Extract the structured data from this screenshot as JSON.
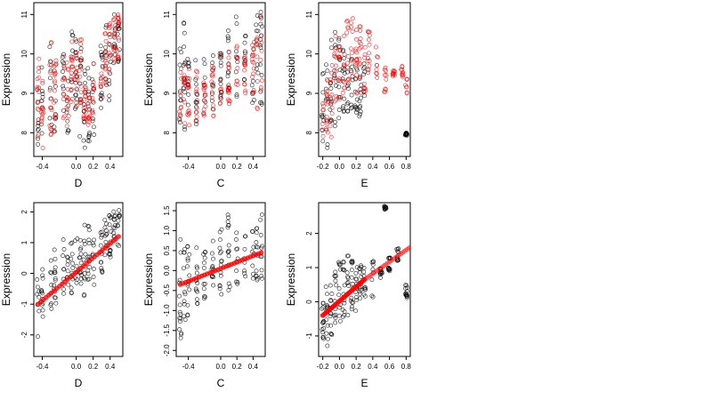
{
  "chart_data": [
    {
      "type": "scatter",
      "title": "",
      "xlabel": "D",
      "ylabel": "Expression",
      "xlim": [
        -0.5,
        0.55
      ],
      "ylim": [
        7.4,
        11.3
      ],
      "xticks": [
        -0.4,
        0.0,
        0.2,
        0.4
      ],
      "xtick_labels": [
        "-0.4",
        "0.0",
        "0.2",
        "0.4"
      ],
      "yticks": [
        8,
        9,
        10,
        11
      ],
      "ytick_labels": [
        "8",
        "9",
        "10",
        "11"
      ],
      "series": [
        {
          "color": "#000000",
          "marker": "open-circle",
          "x_columns": [
            -0.45,
            -0.4,
            -0.3,
            -0.25,
            -0.15,
            -0.1,
            -0.05,
            0.0,
            0.05,
            0.1,
            0.15,
            0.2,
            0.3,
            0.35,
            0.4,
            0.45,
            0.5
          ],
          "y_bands": [
            [
              7.6,
              9.3
            ],
            [
              7.8,
              10.0
            ],
            [
              7.9,
              10.2
            ],
            [
              8.0,
              10.0
            ],
            [
              8.3,
              10.2
            ],
            [
              7.7,
              10.4
            ],
            [
              8.2,
              10.8
            ],
            [
              8.5,
              10.5
            ],
            [
              7.8,
              10.3
            ],
            [
              7.5,
              9.6
            ],
            [
              7.6,
              9.8
            ],
            [
              7.7,
              9.5
            ],
            [
              8.6,
              10.2
            ],
            [
              9.0,
              10.8
            ],
            [
              8.8,
              10.6
            ],
            [
              9.6,
              11.1
            ],
            [
              9.8,
              11.2
            ]
          ]
        },
        {
          "color": "#ff0000",
          "marker": "open-circle",
          "x_columns": [
            -0.45,
            -0.4,
            -0.3,
            -0.25,
            -0.15,
            -0.1,
            -0.05,
            0.0,
            0.05,
            0.1,
            0.15,
            0.2,
            0.3,
            0.35,
            0.4,
            0.45,
            0.5
          ],
          "y_bands": [
            [
              7.6,
              9.9
            ],
            [
              7.5,
              9.4
            ],
            [
              7.9,
              10.3
            ],
            [
              8.0,
              9.9
            ],
            [
              8.3,
              10.1
            ],
            [
              8.1,
              9.8
            ],
            [
              8.5,
              10.5
            ],
            [
              8.6,
              10.2
            ],
            [
              8.7,
              10.4
            ],
            [
              8.3,
              9.2
            ],
            [
              8.2,
              9.0
            ],
            [
              8.3,
              9.8
            ],
            [
              8.5,
              9.9
            ],
            [
              9.2,
              10.6
            ],
            [
              9.2,
              10.9
            ],
            [
              9.8,
              11.0
            ],
            [
              9.6,
              11.1
            ]
          ]
        }
      ]
    },
    {
      "type": "scatter",
      "title": "",
      "xlabel": "C",
      "ylabel": "Expression",
      "xlim": [
        -0.55,
        0.55
      ],
      "ylim": [
        7.4,
        11.3
      ],
      "xticks": [
        -0.4,
        0.0,
        0.2,
        0.4
      ],
      "xtick_labels": [
        "-0.4",
        "0.0",
        "0.2",
        "0.4"
      ],
      "yticks": [
        8,
        9,
        10,
        11
      ],
      "ytick_labels": [
        "8",
        "9",
        "10",
        "11"
      ],
      "series": [
        {
          "color": "#000000",
          "marker": "open-circle",
          "x_columns": [
            -0.5,
            -0.45,
            -0.4,
            -0.3,
            -0.2,
            -0.1,
            0.0,
            0.1,
            0.2,
            0.3,
            0.4,
            0.45,
            0.5
          ],
          "y_bands": [
            [
              7.6,
              10.4
            ],
            [
              7.8,
              10.8
            ],
            [
              8.0,
              10.3
            ],
            [
              8.2,
              10.0
            ],
            [
              8.3,
              9.9
            ],
            [
              8.6,
              10.2
            ],
            [
              8.8,
              10.3
            ],
            [
              8.7,
              10.7
            ],
            [
              8.8,
              11.0
            ],
            [
              9.0,
              10.6
            ],
            [
              8.6,
              10.9
            ],
            [
              8.9,
              11.0
            ],
            [
              8.7,
              11.1
            ]
          ]
        },
        {
          "color": "#ff0000",
          "marker": "open-circle",
          "x_columns": [
            -0.5,
            -0.45,
            -0.4,
            -0.3,
            -0.2,
            -0.1,
            0.0,
            0.1,
            0.2,
            0.3,
            0.4,
            0.45,
            0.5
          ],
          "y_bands": [
            [
              8.1,
              9.9
            ],
            [
              8.2,
              10.0
            ],
            [
              8.1,
              9.7
            ],
            [
              8.3,
              9.6
            ],
            [
              8.4,
              9.3
            ],
            [
              8.4,
              9.7
            ],
            [
              8.7,
              10.0
            ],
            [
              8.7,
              10.1
            ],
            [
              9.1,
              10.2
            ],
            [
              9.0,
              10.0
            ],
            [
              8.8,
              10.4
            ],
            [
              8.6,
              10.5
            ],
            [
              9.0,
              11.0
            ]
          ]
        }
      ]
    },
    {
      "type": "scatter",
      "title": "",
      "xlabel": "E",
      "ylabel": "Expression",
      "xlim": [
        -0.25,
        0.85
      ],
      "ylim": [
        7.4,
        11.3
      ],
      "xticks": [
        -0.2,
        0.0,
        0.2,
        0.4,
        0.6,
        0.8
      ],
      "xtick_labels": [
        "-0.2",
        "0.0",
        "0.2",
        "0.4",
        "0.6",
        "0.8"
      ],
      "yticks": [
        8,
        9,
        10,
        11
      ],
      "ytick_labels": [
        "8",
        "9",
        "10",
        "11"
      ],
      "series": [
        {
          "color": "#000000",
          "marker": "open-circle",
          "x_columns": [
            -0.2,
            -0.15,
            -0.1,
            -0.05,
            0.0,
            0.05,
            0.1,
            0.15,
            0.2,
            0.25,
            0.3,
            0.8
          ],
          "y_bands": [
            [
              7.7,
              9.6
            ],
            [
              7.6,
              10.0
            ],
            [
              7.8,
              10.5
            ],
            [
              8.1,
              10.7
            ],
            [
              8.3,
              10.5
            ],
            [
              8.5,
              10.3
            ],
            [
              8.4,
              10.2
            ],
            [
              8.2,
              10.0
            ],
            [
              8.1,
              9.8
            ],
            [
              8.3,
              9.6
            ],
            [
              8.6,
              9.8
            ],
            [
              7.9,
              8.0
            ]
          ]
        },
        {
          "color": "#ff0000",
          "marker": "open-circle",
          "x_columns": [
            -0.2,
            -0.15,
            -0.1,
            -0.05,
            0.0,
            0.05,
            0.1,
            0.15,
            0.2,
            0.25,
            0.3,
            0.35,
            0.45,
            0.55,
            0.65,
            0.75,
            0.8
          ],
          "y_bands": [
            [
              7.9,
              9.2
            ],
            [
              8.0,
              9.6
            ],
            [
              7.7,
              9.8
            ],
            [
              8.5,
              10.6
            ],
            [
              8.8,
              10.4
            ],
            [
              9.0,
              10.6
            ],
            [
              9.3,
              10.9
            ],
            [
              9.4,
              11.0
            ],
            [
              8.9,
              10.8
            ],
            [
              9.2,
              10.7
            ],
            [
              8.9,
              10.4
            ],
            [
              9.5,
              10.6
            ],
            [
              9.2,
              10.2
            ],
            [
              9.0,
              10.0
            ],
            [
              9.4,
              9.6
            ],
            [
              9.3,
              9.7
            ],
            [
              9.0,
              9.4
            ]
          ]
        }
      ]
    },
    {
      "type": "scatter",
      "title": "",
      "xlabel": "D",
      "ylabel": "Expression",
      "xlim": [
        -0.5,
        0.55
      ],
      "ylim": [
        -2.7,
        2.3
      ],
      "xticks": [
        -0.4,
        0.0,
        0.2,
        0.4
      ],
      "xtick_labels": [
        "-0.4",
        "0.0",
        "0.2",
        "0.4"
      ],
      "yticks": [
        -2,
        -1,
        0,
        1,
        2
      ],
      "ytick_labels": [
        "-2",
        "-1",
        "0",
        "1",
        "2"
      ],
      "series": [
        {
          "color": "#000000",
          "marker": "open-circle",
          "x_columns": [
            -0.45,
            -0.4,
            -0.3,
            -0.25,
            -0.15,
            -0.1,
            -0.05,
            0.0,
            0.05,
            0.1,
            0.15,
            0.2,
            0.3,
            0.35,
            0.4,
            0.45,
            0.5
          ],
          "y_bands": [
            [
              -2.4,
              -0.2
            ],
            [
              -1.5,
              0.2
            ],
            [
              -1.2,
              0.5
            ],
            [
              -1.0,
              0.8
            ],
            [
              -0.9,
              1.1
            ],
            [
              -0.9,
              0.6
            ],
            [
              -0.7,
              1.0
            ],
            [
              -0.4,
              1.3
            ],
            [
              -0.5,
              1.2
            ],
            [
              -0.8,
              1.6
            ],
            [
              -0.5,
              1.6
            ],
            [
              -0.4,
              1.2
            ],
            [
              0.0,
              1.4
            ],
            [
              0.3,
              1.9
            ],
            [
              0.4,
              2.0
            ],
            [
              0.6,
              2.1
            ],
            [
              0.5,
              2.2
            ]
          ]
        },
        {
          "color": "#ff0000",
          "marker": "filled-circle",
          "x_range": [
            -0.45,
            0.5
          ],
          "y_range": [
            -1.0,
            1.2
          ]
        }
      ]
    },
    {
      "type": "scatter",
      "title": "",
      "xlabel": "C",
      "ylabel": "Expression",
      "xlim": [
        -0.55,
        0.55
      ],
      "ylim": [
        -2.15,
        1.7
      ],
      "xticks": [
        -0.4,
        0.0,
        0.2,
        0.4
      ],
      "xtick_labels": [
        "-0.4",
        "0.0",
        "0.2",
        "0.4"
      ],
      "yticks": [
        -2.0,
        -1.5,
        -1.0,
        -0.5,
        0.0,
        0.5,
        1.0,
        1.5
      ],
      "ytick_labels": [
        "-2.0",
        "-1.5",
        "-1.0",
        "-0.5",
        "0.0",
        "0.5",
        "1.0",
        "1.5"
      ],
      "series": [
        {
          "color": "#000000",
          "marker": "open-circle",
          "x_columns": [
            -0.5,
            -0.45,
            -0.4,
            -0.3,
            -0.2,
            -0.1,
            0.0,
            0.1,
            0.2,
            0.3,
            0.4,
            0.45,
            0.5
          ],
          "y_bands": [
            [
              -1.7,
              1.0
            ],
            [
              -1.5,
              0.8
            ],
            [
              -1.2,
              0.9
            ],
            [
              -0.9,
              0.6
            ],
            [
              -0.8,
              0.5
            ],
            [
              -0.7,
              0.9
            ],
            [
              -0.6,
              1.1
            ],
            [
              -0.5,
              1.4
            ],
            [
              -0.4,
              1.3
            ],
            [
              -0.3,
              0.9
            ],
            [
              -0.2,
              1.0
            ],
            [
              -0.3,
              1.3
            ],
            [
              -0.3,
              1.6
            ]
          ]
        },
        {
          "color": "#ff0000",
          "marker": "filled-circle",
          "x_range": [
            -0.5,
            0.5
          ],
          "y_range": [
            -0.35,
            0.45
          ]
        }
      ]
    },
    {
      "type": "scatter",
      "title": "",
      "xlabel": "E",
      "ylabel": "Expression",
      "xlim": [
        -0.25,
        0.85
      ],
      "ylim": [
        -1.6,
        2.9
      ],
      "xticks": [
        -0.2,
        0.0,
        0.2,
        0.4,
        0.6,
        0.8
      ],
      "xtick_labels": [
        "-0.2",
        "0.0",
        "0.2",
        "0.4",
        "0.6",
        "0.8"
      ],
      "yticks": [
        -1,
        0,
        1,
        2
      ],
      "ytick_labels": [
        "-1",
        "0",
        "1",
        "2"
      ],
      "series": [
        {
          "color": "#000000",
          "marker": "open-circle",
          "x_columns": [
            -0.2,
            -0.15,
            -0.1,
            -0.05,
            0.0,
            0.05,
            0.1,
            0.15,
            0.2,
            0.25,
            0.3,
            0.4,
            0.5,
            0.55,
            0.6,
            0.7,
            0.8
          ],
          "y_bands": [
            [
              -1.5,
              0.4
            ],
            [
              -1.3,
              0.7
            ],
            [
              -1.1,
              1.0
            ],
            [
              -0.9,
              1.1
            ],
            [
              -0.7,
              1.2
            ],
            [
              -0.6,
              1.3
            ],
            [
              -0.5,
              1.4
            ],
            [
              -0.4,
              1.3
            ],
            [
              -0.3,
              1.2
            ],
            [
              0.0,
              1.1
            ],
            [
              0.1,
              1.0
            ],
            [
              0.1,
              1.2
            ],
            [
              0.7,
              1.0
            ],
            [
              2.7,
              2.8
            ],
            [
              0.9,
              1.3
            ],
            [
              1.2,
              1.6
            ],
            [
              0.1,
              0.5
            ]
          ]
        },
        {
          "color": "#ff0000",
          "marker": "filled-circle",
          "x_range": [
            -0.2,
            0.3
          ],
          "y_range": [
            -0.4,
            0.65
          ]
        },
        {
          "color": "#ff0000",
          "marker": "faint-filled-circle",
          "x_range": [
            0.3,
            0.85
          ],
          "y_range": [
            0.65,
            1.6
          ]
        }
      ]
    }
  ]
}
